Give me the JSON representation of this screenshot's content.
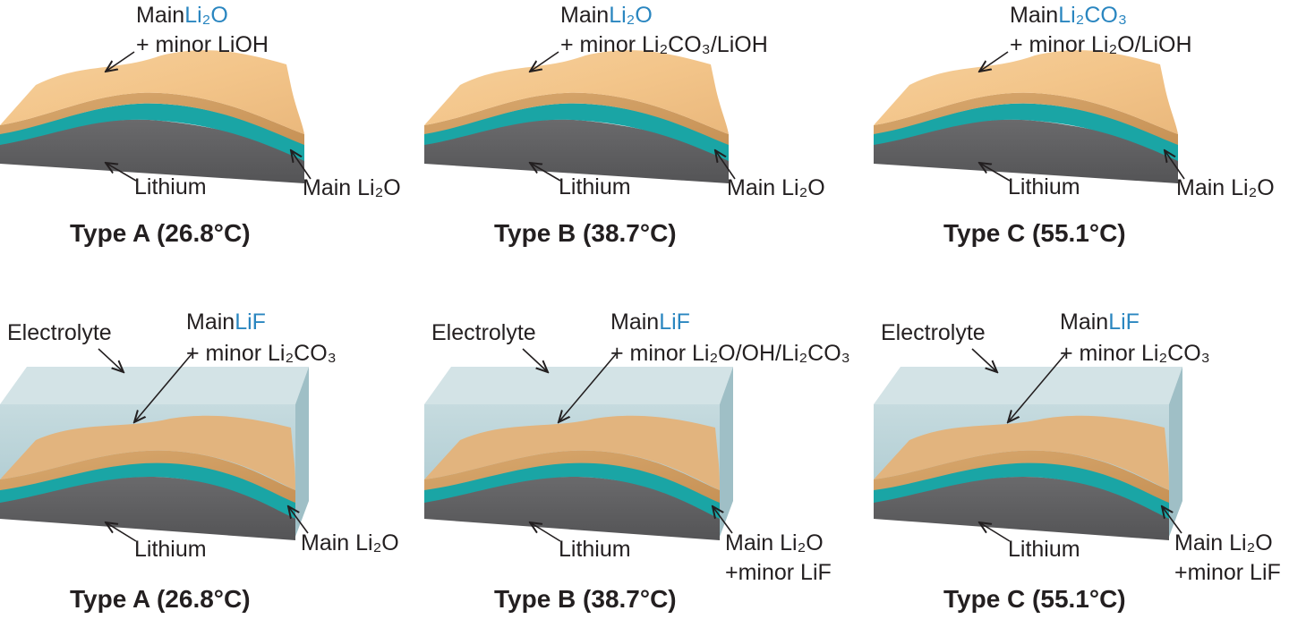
{
  "colors": {
    "accent_blue": "#2a86c0",
    "lithium": "#5f5f61",
    "teal_layer": "#1aa5a5",
    "sei_top": "#f3c890",
    "electrolyte": "#b9d3d8"
  },
  "panels": [
    {
      "title": "Type A (26.8°C)",
      "main_word": "Main",
      "main_species": "Li₂O",
      "minor": "+ minor LiOH",
      "lithium": "Lithium",
      "inner": "Main Li₂O"
    },
    {
      "title": "Type B (38.7°C)",
      "main_word": "Main",
      "main_species": "Li₂O",
      "minor": "+ minor Li₂CO₃/LiOH",
      "lithium": "Lithium",
      "inner": "Main Li₂O"
    },
    {
      "title": "Type C (55.1°C)",
      "main_word": "Main",
      "main_species": "Li₂CO₃",
      "minor": "+ minor Li₂O/LiOH",
      "lithium": "Lithium",
      "inner": "Main Li₂O"
    },
    {
      "title": "Type A (26.8°C)",
      "electrolyte": "Electrolyte",
      "main_word": "Main",
      "main_species": "LiF",
      "minor": "+ minor Li₂CO₃",
      "lithium": "Lithium",
      "inner": "Main Li₂O"
    },
    {
      "title": "Type B (38.7°C)",
      "electrolyte": "Electrolyte",
      "main_word": "Main",
      "main_species": "LiF",
      "minor": "+ minor Li₂O/OH/Li₂CO₃",
      "lithium": "Lithium",
      "inner": "Main Li₂O",
      "inner2": "+minor LiF"
    },
    {
      "title": "Type C (55.1°C)",
      "electrolyte": "Electrolyte",
      "main_word": "Main",
      "main_species": "LiF",
      "minor": "+ minor Li₂CO₃",
      "lithium": "Lithium",
      "inner": "Main Li₂O",
      "inner2": "+minor LiF"
    }
  ]
}
